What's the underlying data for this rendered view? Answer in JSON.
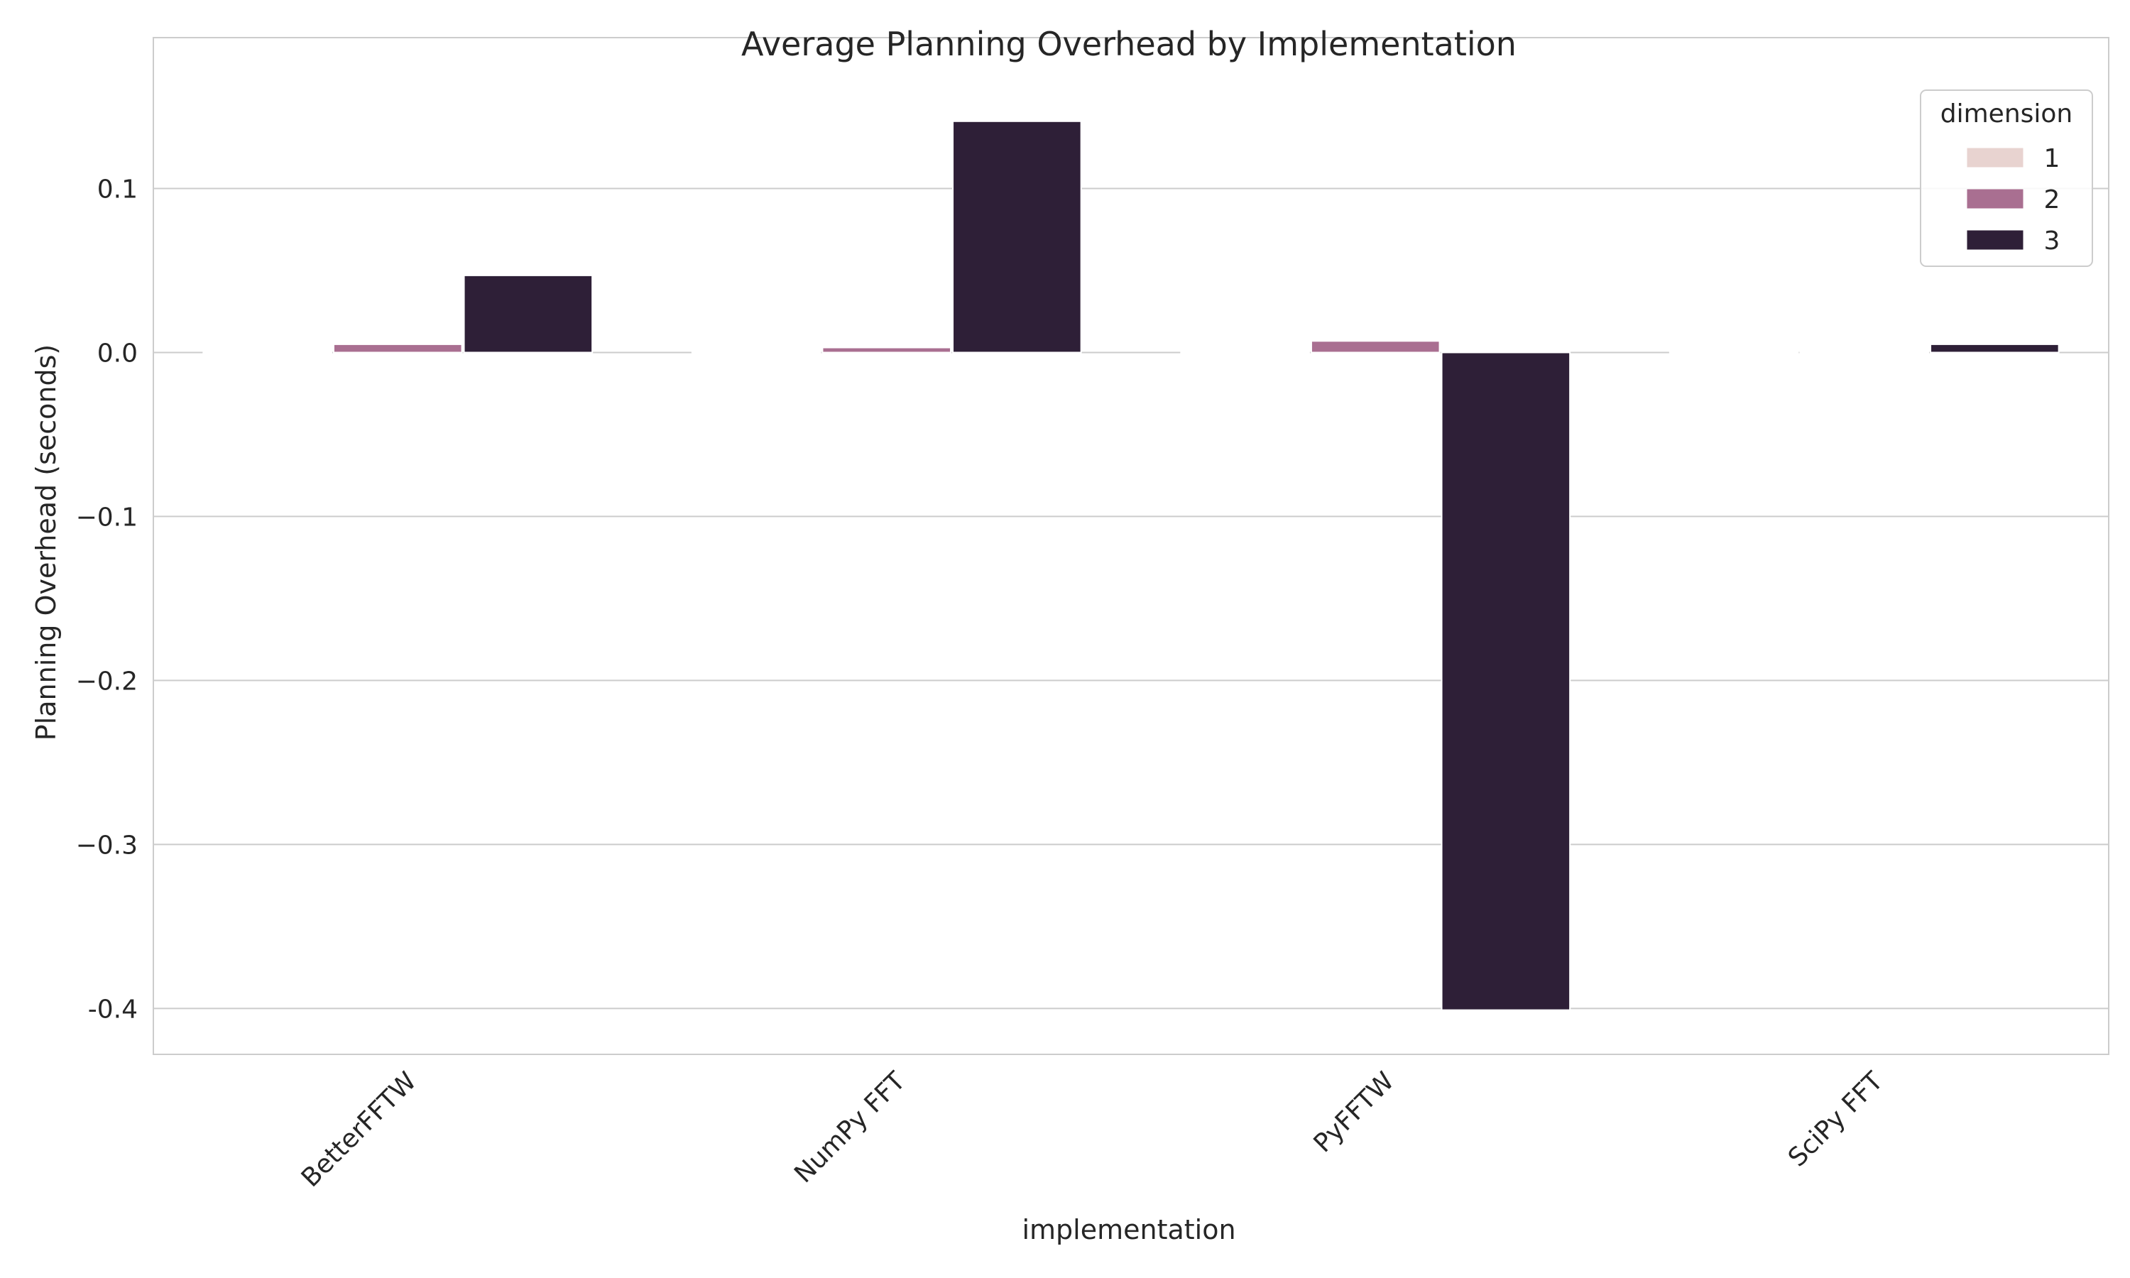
{
  "chart_data": {
    "type": "bar",
    "title": "Average Planning Overhead by Implementation",
    "xlabel": "implementation",
    "ylabel": "Planning Overhead (seconds)",
    "categories": [
      "BetterFFTW",
      "NumPy FFT",
      "PyFFTW",
      "SciPy FFT"
    ],
    "series": [
      {
        "name": "1",
        "color": "#e8d3d0",
        "values": [
          0.0002,
          0.0002,
          0.0002,
          0.0002
        ]
      },
      {
        "name": "2",
        "color": "#a96f91",
        "values": [
          0.005,
          0.003,
          0.007,
          0.0003
        ]
      },
      {
        "name": "3",
        "color": "#2e1f37",
        "values": [
          0.047,
          0.141,
          -0.401,
          0.005
        ]
      }
    ],
    "ylim": [
      -0.428,
      0.192
    ],
    "yticks": [
      0.1,
      0.0,
      -0.1,
      -0.2,
      -0.3,
      -0.4
    ],
    "ytick_labels": [
      "0.1",
      "0.0",
      "−0.1",
      "−0.2",
      "−0.3",
      "-0.4"
    ],
    "grid": true,
    "legend_title": "dimension",
    "legend_position": "top-right"
  }
}
